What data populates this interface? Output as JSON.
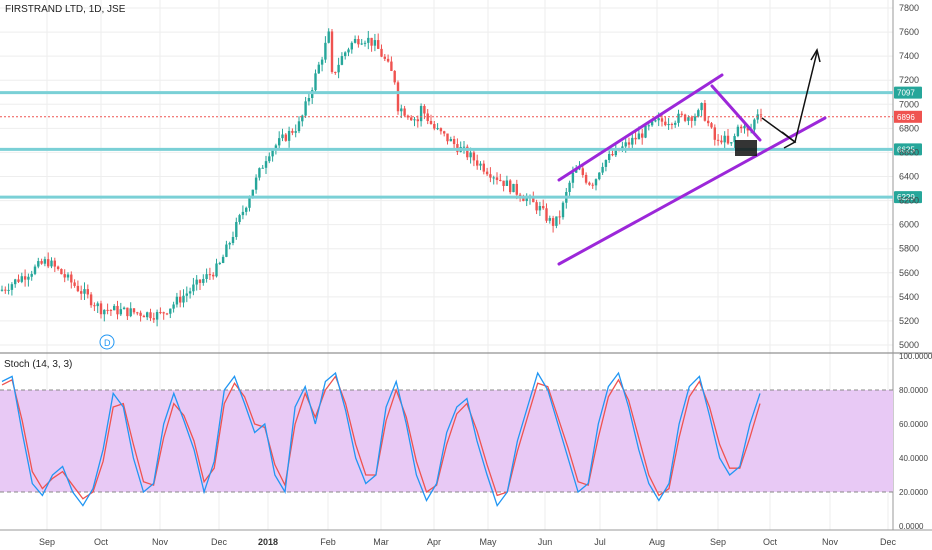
{
  "header": {
    "title": "FIRSTRAND LTD, 1D, JSE"
  },
  "indicator": {
    "label": "Stoch (14, 3, 3)"
  },
  "colors": {
    "up": "#26a69a",
    "down": "#ef5350",
    "hline": "#7ad0d6",
    "channel": "#9c27d9",
    "stochK": "#2196f3",
    "stochD": "#ef5350",
    "band": "#e8c9f5",
    "grid": "#eeeeee"
  },
  "chart_data": [
    {
      "type": "candlestick",
      "title": "FIRSTRAND LTD, 1D, JSE",
      "x_ticks": [
        "Sep",
        "Oct",
        "Nov",
        "Dec",
        "2018",
        "Feb",
        "Mar",
        "Apr",
        "May",
        "Jun",
        "Jul",
        "Aug",
        "Sep",
        "Oct",
        "Nov",
        "Dec"
      ],
      "y_ticks": [
        5000,
        5200,
        5400,
        5600,
        5800,
        6000,
        6200,
        6400,
        6600,
        6800,
        7000,
        7200,
        7400,
        7600,
        7800
      ],
      "ylim": [
        4950,
        7850
      ],
      "price_anchors": [
        {
          "date": "Aug",
          "close": 5450
        },
        {
          "date": "Sep",
          "close": 5700
        },
        {
          "date": "Oct",
          "close": 5300
        },
        {
          "date": "Nov",
          "close": 5250
        },
        {
          "date": "Dec",
          "close": 5650
        },
        {
          "date": "2018",
          "close": 6600
        },
        {
          "date": "Feb",
          "close": 7050
        },
        {
          "date": "Mar",
          "close": 7500
        },
        {
          "date": "Apr",
          "close": 6800
        },
        {
          "date": "May",
          "close": 6450
        },
        {
          "date": "Jun",
          "close": 6100
        },
        {
          "date": "Jul",
          "close": 6500
        },
        {
          "date": "Aug",
          "close": 6850
        },
        {
          "date": "Sep",
          "close": 6950
        }
      ],
      "horizontal_levels": [
        {
          "value": 7097,
          "label": "7097"
        },
        {
          "value": 6625,
          "label": "6625"
        },
        {
          "value": 6229,
          "label": "6229"
        }
      ],
      "last_price": {
        "value": 6896,
        "label": "6896"
      },
      "markers": [
        {
          "label": "D"
        }
      ]
    },
    {
      "type": "line",
      "title": "Stoch (14, 3, 3)",
      "y_ticks": [
        "100.0000",
        "80.0000",
        "60.0000",
        "40.0000",
        "20.0000",
        "0.0000"
      ],
      "ylim": [
        0,
        100
      ],
      "band": [
        20,
        80
      ],
      "series": [
        {
          "name": "%K",
          "values": [
            85,
            88,
            55,
            25,
            18,
            30,
            35,
            20,
            12,
            22,
            45,
            78,
            70,
            40,
            20,
            25,
            60,
            78,
            62,
            45,
            20,
            38,
            80,
            88,
            72,
            55,
            60,
            30,
            20,
            70,
            82,
            60,
            85,
            90,
            68,
            40,
            25,
            30,
            70,
            85,
            60,
            30,
            15,
            25,
            55,
            70,
            75,
            50,
            30,
            12,
            20,
            50,
            70,
            90,
            80,
            60,
            40,
            20,
            25,
            60,
            82,
            90,
            70,
            45,
            25,
            15,
            25,
            60,
            82,
            88,
            65,
            40,
            30,
            35,
            60,
            78
          ]
        },
        {
          "name": "%D",
          "values": [
            83,
            86,
            62,
            32,
            22,
            28,
            32,
            24,
            16,
            20,
            38,
            70,
            72,
            48,
            26,
            24,
            52,
            72,
            65,
            50,
            26,
            34,
            72,
            84,
            76,
            60,
            58,
            36,
            24,
            60,
            78,
            64,
            80,
            88,
            72,
            48,
            30,
            30,
            62,
            80,
            64,
            38,
            20,
            24,
            48,
            66,
            72,
            56,
            36,
            18,
            20,
            44,
            64,
            84,
            82,
            64,
            46,
            26,
            24,
            52,
            76,
            86,
            74,
            52,
            30,
            18,
            22,
            52,
            76,
            85,
            70,
            48,
            34,
            34,
            52,
            72
          ]
        }
      ]
    }
  ]
}
